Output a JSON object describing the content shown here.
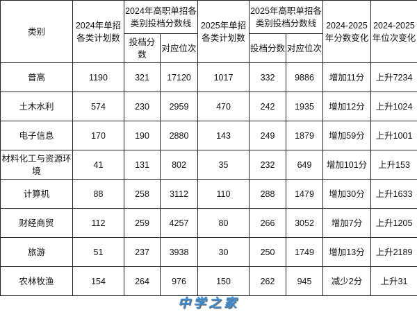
{
  "header": {
    "category": "类别",
    "plan2024": "2024年单招各类计划数",
    "line2024": "2024年高职单招各类别投档分数线",
    "plan2025": "2025年单招各类计划数",
    "line2025": "2025年高职单招各类别投档分数线",
    "score": "投档分数",
    "rank": "对应位次",
    "score_change": "2024-2025年分数变化",
    "rank_change": "2024-2025年位次变化"
  },
  "rows": [
    {
      "category": "普高",
      "plan2024": "1190",
      "score2024": "321",
      "rank2024": "17120",
      "plan2025": "1017",
      "score2025": "332",
      "rank2025": "9886",
      "score_change": "增加11分",
      "rank_change": "上升7234"
    },
    {
      "category": "土木水利",
      "plan2024": "574",
      "score2024": "230",
      "rank2024": "2959",
      "plan2025": "470",
      "score2025": "242",
      "rank2025": "1935",
      "score_change": "增加12分",
      "rank_change": "上升1024"
    },
    {
      "category": "电子信息",
      "plan2024": "170",
      "score2024": "190",
      "rank2024": "2880",
      "plan2025": "143",
      "score2025": "249",
      "rank2025": "1879",
      "score_change": "增加59分",
      "rank_change": "上升1001"
    },
    {
      "category": "材料化工与资源环境",
      "plan2024": "41",
      "score2024": "131",
      "rank2024": "802",
      "plan2025": "35",
      "score2025": "232",
      "rank2025": "649",
      "score_change": "增加101分",
      "rank_change": "上升153"
    },
    {
      "category": "计算机",
      "plan2024": "88",
      "score2024": "258",
      "rank2024": "3112",
      "plan2025": "110",
      "score2025": "288",
      "rank2025": "1479",
      "score_change": "增加30分",
      "rank_change": "上升1633"
    },
    {
      "category": "财经商贸",
      "plan2024": "112",
      "score2024": "259",
      "rank2024": "4257",
      "plan2025": "80",
      "score2025": "266",
      "rank2025": "3052",
      "score_change": "增加7分",
      "rank_change": "上升1205"
    },
    {
      "category": "旅游",
      "plan2024": "51",
      "score2024": "237",
      "rank2024": "3938",
      "plan2025": "30",
      "score2025": "250",
      "rank2025": "1749",
      "score_change": "增加13分",
      "rank_change": "上升2189"
    },
    {
      "category": "农林牧渔",
      "plan2024": "154",
      "score2024": "264",
      "rank2024": "976",
      "plan2025": "150",
      "score2025": "262",
      "rank2025": "945",
      "score_change": "减少2分",
      "rank_change": "上升31"
    }
  ],
  "watermark": "中学之家"
}
